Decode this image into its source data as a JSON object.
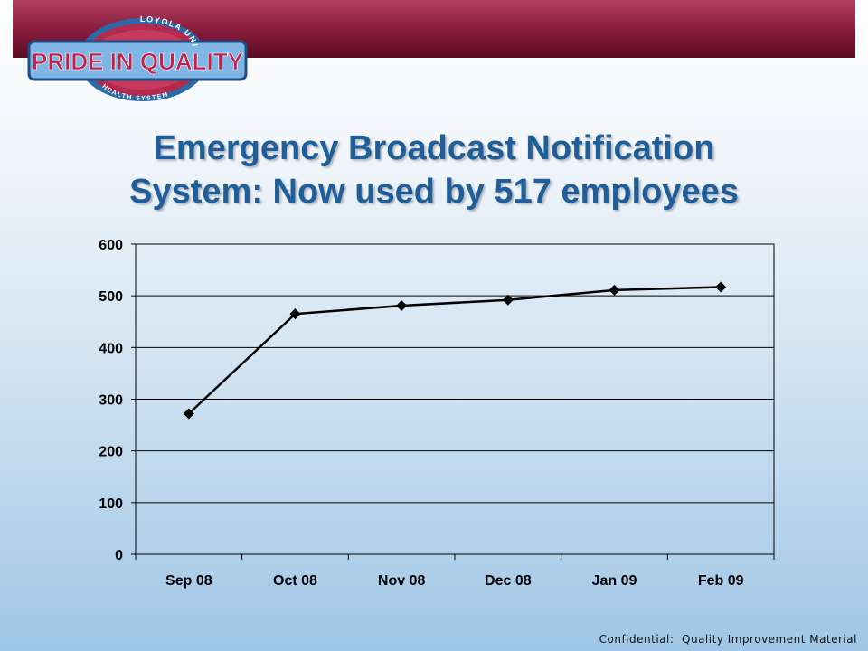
{
  "logo": {
    "top_arc": "LOYOLA UNIVERSITY",
    "main": "PRIDE IN QUALITY",
    "bottom_arc": "HEALTH SYSTEM"
  },
  "title": {
    "line1": "Emergency Broadcast Notification",
    "line2": "System:  Now used by 517 employees"
  },
  "footer": "Confidential:  Quality Improvement Material",
  "colors": {
    "band": "#8a1d3e",
    "title": "#1f5e99",
    "line": "#000000"
  },
  "chart_data": {
    "type": "line",
    "categories": [
      "Sep 08",
      "Oct 08",
      "Nov 08",
      "Dec 08",
      "Jan 09",
      "Feb 09"
    ],
    "series": [
      {
        "values": [
          272,
          465,
          481,
          492,
          511,
          517
        ]
      }
    ],
    "ylim": [
      0,
      600
    ],
    "yticks": [
      0,
      100,
      200,
      300,
      400,
      500,
      600
    ],
    "grid": true,
    "marker": "diamond",
    "legend": "none"
  }
}
